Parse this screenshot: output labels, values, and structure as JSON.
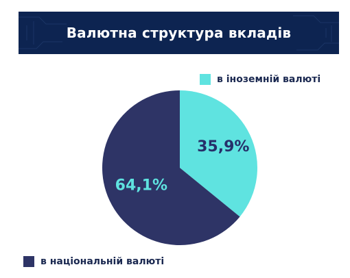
{
  "title": "Валютна структура вкладів",
  "colors": {
    "banner": "#0d2451",
    "foreign": "#5fe3e0",
    "national": "#2e3466",
    "label_on_foreign": "#26306a",
    "label_on_national": "#5fe3e0",
    "legend_text": "#1a2850"
  },
  "chart_data": {
    "type": "pie",
    "legend": "split: top-right and bottom-left",
    "slices": [
      {
        "name": "в іноземній валюті",
        "value": 35.9,
        "label": "35,9%"
      },
      {
        "name": "в національній валюті",
        "value": 64.1,
        "label": "64,1%"
      }
    ]
  }
}
